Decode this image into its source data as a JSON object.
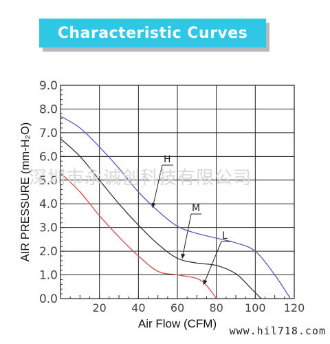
{
  "banner": {
    "title": "Characteristic Curves"
  },
  "watermark": "深圳市永诚创科技有限公司",
  "site": "www.hil718.com",
  "chart_data": {
    "type": "line",
    "title": "",
    "xlabel": "Air Flow (CFM)",
    "ylabel": "AIR PRESSURE (mm-H₂O)",
    "xlim": [
      0,
      120
    ],
    "ylim": [
      0,
      9
    ],
    "x_ticks": [
      20,
      40,
      60,
      80,
      100,
      120
    ],
    "y_ticks": [
      "0.0",
      "1.0",
      "2.0",
      "3.0",
      "4.0",
      "5.0",
      "6.0",
      "7.0",
      "8.0",
      "9.0"
    ],
    "grid": true,
    "series": [
      {
        "name": "H",
        "color": "#5b5bb8",
        "x": [
          0,
          10,
          20,
          30,
          40,
          50,
          60,
          70,
          80,
          90,
          100,
          110,
          118
        ],
        "y": [
          7.7,
          7.2,
          6.4,
          5.5,
          4.5,
          3.7,
          3.05,
          2.75,
          2.55,
          2.35,
          2.0,
          1.0,
          0.0
        ]
      },
      {
        "name": "M",
        "color": "#333333",
        "x": [
          0,
          10,
          20,
          30,
          40,
          50,
          60,
          70,
          80,
          90,
          97,
          103
        ],
        "y": [
          6.75,
          6.0,
          5.0,
          4.0,
          3.1,
          2.3,
          1.7,
          1.5,
          1.4,
          1.05,
          0.5,
          0.0
        ]
      },
      {
        "name": "L",
        "color": "#d24a4a",
        "x": [
          0,
          10,
          20,
          30,
          40,
          50,
          60,
          70,
          75,
          80
        ],
        "y": [
          5.3,
          4.5,
          3.5,
          2.6,
          1.8,
          1.15,
          1.0,
          0.85,
          0.55,
          0.0
        ]
      }
    ],
    "annotations": [
      {
        "label": "H",
        "series": "H"
      },
      {
        "label": "M",
        "series": "M"
      },
      {
        "label": "L",
        "series": "L"
      }
    ]
  }
}
